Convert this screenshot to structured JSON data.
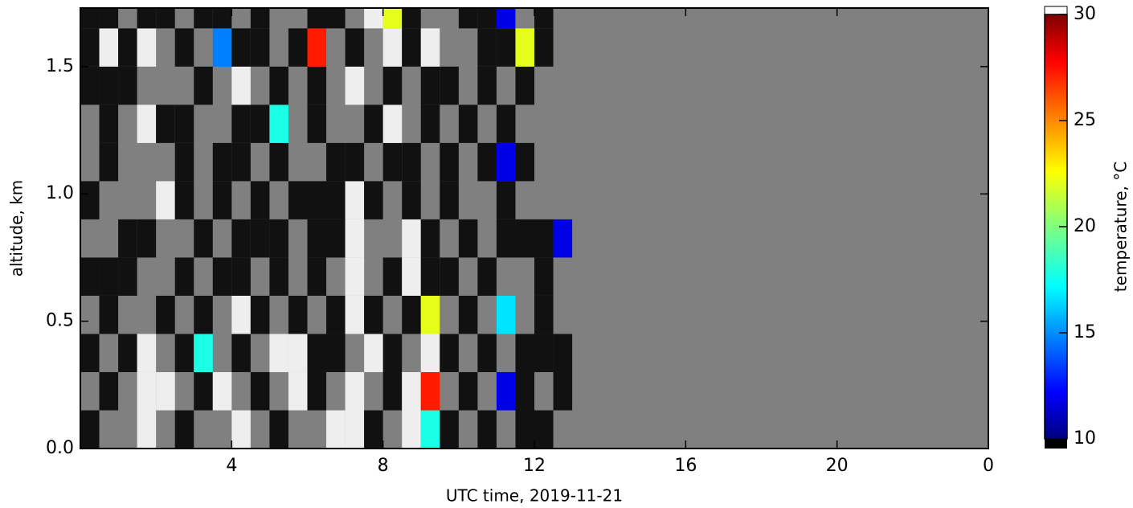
{
  "chart_data": {
    "type": "heatmap",
    "xlabel": "UTC time,  2019-11-21",
    "ylabel": "altitude, km",
    "xlim": [
      0,
      24
    ],
    "xticks": [
      4,
      8,
      12,
      16,
      20,
      {
        "value": 24,
        "label": "0"
      }
    ],
    "ylim": [
      0,
      1.73
    ],
    "yticks": [
      {
        "value": 0,
        "label": "0.0"
      },
      0.5,
      {
        "value": 1,
        "label": "1.0"
      },
      1.5
    ],
    "x": [
      0,
      0.5,
      1,
      1.5,
      2,
      2.5,
      3,
      3.5,
      4,
      4.5,
      5,
      5.5,
      6,
      6.5,
      7,
      7.5,
      8,
      8.5,
      9,
      9.5,
      10,
      10.5,
      11,
      11.5,
      12,
      12.5
    ],
    "y": [
      0,
      0.15,
      0.3,
      0.45,
      0.6,
      0.75,
      0.9,
      1.05,
      1.2,
      1.35,
      1.5,
      1.65
    ],
    "z": [
      [
        5,
        null,
        null,
        35,
        null,
        5,
        null,
        null,
        35,
        null,
        5,
        null,
        null,
        35,
        35,
        5,
        null,
        35,
        18,
        5,
        null,
        5,
        null,
        5,
        5,
        null
      ],
      [
        null,
        5,
        null,
        35,
        35,
        null,
        5,
        35,
        null,
        5,
        null,
        35,
        5,
        null,
        35,
        null,
        5,
        35,
        27,
        null,
        5,
        null,
        12,
        5,
        null,
        5
      ],
      [
        5,
        null,
        5,
        35,
        null,
        5,
        18,
        null,
        5,
        null,
        35,
        35,
        5,
        5,
        null,
        35,
        5,
        null,
        35,
        5,
        null,
        5,
        null,
        5,
        5,
        5
      ],
      [
        null,
        5,
        null,
        null,
        5,
        null,
        5,
        null,
        35,
        5,
        null,
        5,
        null,
        5,
        35,
        5,
        null,
        5,
        22,
        null,
        5,
        null,
        17,
        null,
        5,
        null
      ],
      [
        5,
        5,
        5,
        null,
        null,
        5,
        null,
        5,
        5,
        null,
        5,
        null,
        5,
        null,
        35,
        null,
        5,
        35,
        5,
        5,
        null,
        5,
        null,
        null,
        5,
        null
      ],
      [
        null,
        null,
        5,
        5,
        null,
        null,
        5,
        null,
        5,
        5,
        5,
        null,
        5,
        5,
        35,
        null,
        null,
        35,
        5,
        null,
        5,
        null,
        5,
        5,
        5,
        12
      ],
      [
        5,
        null,
        null,
        null,
        35,
        5,
        null,
        5,
        null,
        5,
        null,
        5,
        5,
        5,
        35,
        5,
        null,
        5,
        null,
        5,
        null,
        null,
        5,
        null,
        null,
        null
      ],
      [
        null,
        5,
        null,
        null,
        null,
        5,
        null,
        5,
        5,
        null,
        5,
        null,
        null,
        5,
        5,
        null,
        5,
        5,
        null,
        5,
        null,
        5,
        12,
        5,
        null,
        null
      ],
      [
        null,
        5,
        null,
        35,
        5,
        5,
        null,
        null,
        5,
        5,
        18,
        null,
        5,
        null,
        null,
        5,
        35,
        null,
        5,
        null,
        5,
        null,
        5,
        null,
        null,
        null
      ],
      [
        5,
        5,
        5,
        null,
        null,
        null,
        5,
        null,
        35,
        null,
        5,
        null,
        5,
        null,
        35,
        null,
        5,
        null,
        5,
        5,
        null,
        5,
        null,
        5,
        null,
        null
      ],
      [
        5,
        35,
        5,
        35,
        null,
        5,
        null,
        15,
        5,
        5,
        null,
        5,
        27,
        null,
        5,
        null,
        35,
        5,
        35,
        null,
        null,
        5,
        5,
        22,
        5,
        null
      ],
      [
        5,
        5,
        null,
        5,
        5,
        null,
        5,
        5,
        null,
        5,
        null,
        null,
        5,
        5,
        null,
        35,
        22,
        5,
        null,
        null,
        5,
        5,
        12,
        null,
        5,
        null
      ]
    ],
    "colorbar": {
      "label": "temperature, °C",
      "lim": [
        10,
        30
      ],
      "ticks": [
        10,
        15,
        20,
        25,
        30
      ]
    }
  }
}
